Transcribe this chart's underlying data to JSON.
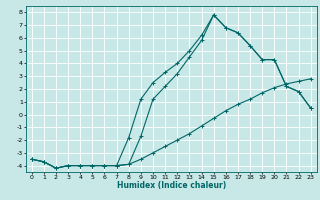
{
  "title": "",
  "xlabel": "Humidex (Indice chaleur)",
  "bg_color": "#c8e8e8",
  "grid_color": "#ffffff",
  "line_color": "#006666",
  "xlim": [
    -0.5,
    23.5
  ],
  "ylim": [
    -4.5,
    8.5
  ],
  "xticks": [
    0,
    1,
    2,
    3,
    4,
    5,
    6,
    7,
    8,
    9,
    10,
    11,
    12,
    13,
    14,
    15,
    16,
    17,
    18,
    19,
    20,
    21,
    22,
    23
  ],
  "yticks": [
    -4,
    -3,
    -2,
    -1,
    0,
    1,
    2,
    3,
    4,
    5,
    6,
    7,
    8
  ],
  "line1_x": [
    0,
    1,
    2,
    3,
    4,
    5,
    6,
    7,
    8,
    9,
    10,
    11,
    12,
    13,
    14,
    15,
    16,
    17,
    18,
    19,
    20,
    21,
    22,
    23
  ],
  "line1_y": [
    -3.5,
    -3.7,
    -4.2,
    -4.0,
    -4.0,
    -4.0,
    -4.0,
    -4.0,
    -3.9,
    -1.7,
    1.2,
    2.2,
    3.2,
    4.5,
    5.8,
    7.8,
    6.8,
    6.4,
    5.4,
    4.3,
    4.3,
    2.2,
    1.8,
    0.5
  ],
  "line2_x": [
    0,
    1,
    2,
    3,
    4,
    5,
    6,
    7,
    8,
    9,
    10,
    11,
    12,
    13,
    14,
    15,
    16,
    17,
    18,
    19,
    20,
    21,
    22,
    23
  ],
  "line2_y": [
    -3.5,
    -3.7,
    -4.2,
    -4.0,
    -4.0,
    -4.0,
    -4.0,
    -4.0,
    -3.9,
    -3.5,
    -3.0,
    -2.5,
    -2.0,
    -1.5,
    -0.9,
    -0.3,
    0.3,
    0.8,
    1.2,
    1.7,
    2.1,
    2.4,
    2.6,
    2.8
  ],
  "line3_x": [
    0,
    1,
    2,
    3,
    4,
    5,
    6,
    7,
    8,
    9,
    10,
    11,
    12,
    13,
    14,
    15,
    16,
    17,
    18,
    19,
    20,
    21,
    22,
    23
  ],
  "line3_y": [
    -3.5,
    -3.7,
    -4.2,
    -4.0,
    -4.0,
    -4.0,
    -4.0,
    -4.0,
    -1.8,
    1.2,
    2.5,
    3.3,
    4.0,
    5.0,
    6.2,
    7.8,
    6.8,
    6.4,
    5.4,
    4.3,
    4.3,
    2.2,
    1.8,
    0.5
  ]
}
